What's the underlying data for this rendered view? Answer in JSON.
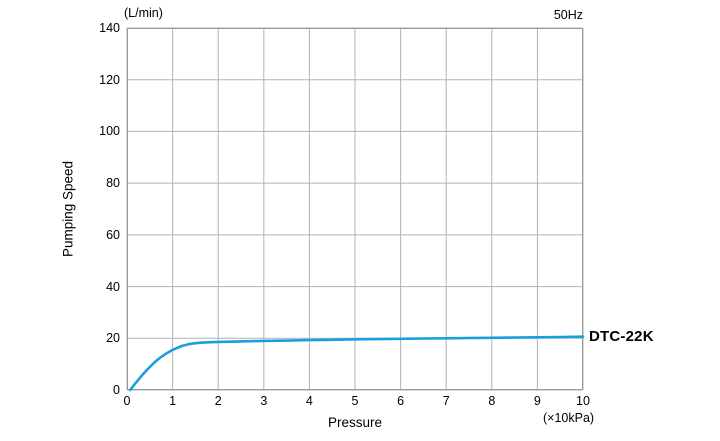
{
  "chart_data": {
    "type": "line",
    "title": "",
    "ylabel": "Pumping Speed",
    "xlabel": "Pressure",
    "y_unit": "(L/min)",
    "x_unit": "(×10kPa)",
    "frequency_label": "50Hz",
    "xlim": [
      0,
      10
    ],
    "ylim": [
      0,
      140
    ],
    "xticks": [
      0,
      1,
      2,
      3,
      4,
      5,
      6,
      7,
      8,
      9,
      10
    ],
    "yticks": [
      0,
      20,
      40,
      60,
      80,
      100,
      120,
      140
    ],
    "grid": true,
    "legend_position": "right-of-curve-end",
    "colors": {
      "grid": "#b3b3b3",
      "axis": "#999999",
      "text": "#000000",
      "curve": "#18a0dc"
    },
    "series": [
      {
        "name": "DTC-22K",
        "color": "#18a0dc",
        "points": [
          [
            0.07,
            0
          ],
          [
            0.15,
            1.8
          ],
          [
            0.25,
            4.0
          ],
          [
            0.35,
            6.1
          ],
          [
            0.45,
            8.0
          ],
          [
            0.55,
            9.8
          ],
          [
            0.65,
            11.4
          ],
          [
            0.75,
            12.8
          ],
          [
            0.85,
            14.0
          ],
          [
            1.0,
            15.5
          ],
          [
            1.1,
            16.3
          ],
          [
            1.2,
            17.0
          ],
          [
            1.35,
            17.7
          ],
          [
            1.5,
            18.1
          ],
          [
            1.7,
            18.4
          ],
          [
            2.0,
            18.6
          ],
          [
            2.5,
            18.8
          ],
          [
            3.0,
            19.0
          ],
          [
            3.5,
            19.1
          ],
          [
            4.0,
            19.3
          ],
          [
            4.5,
            19.4
          ],
          [
            5.0,
            19.6
          ],
          [
            5.5,
            19.7
          ],
          [
            6.0,
            19.8
          ],
          [
            6.5,
            19.9
          ],
          [
            7.0,
            20.0
          ],
          [
            7.5,
            20.1
          ],
          [
            8.0,
            20.2
          ],
          [
            8.5,
            20.3
          ],
          [
            9.0,
            20.4
          ],
          [
            9.5,
            20.5
          ],
          [
            10.0,
            20.6
          ]
        ]
      }
    ]
  }
}
